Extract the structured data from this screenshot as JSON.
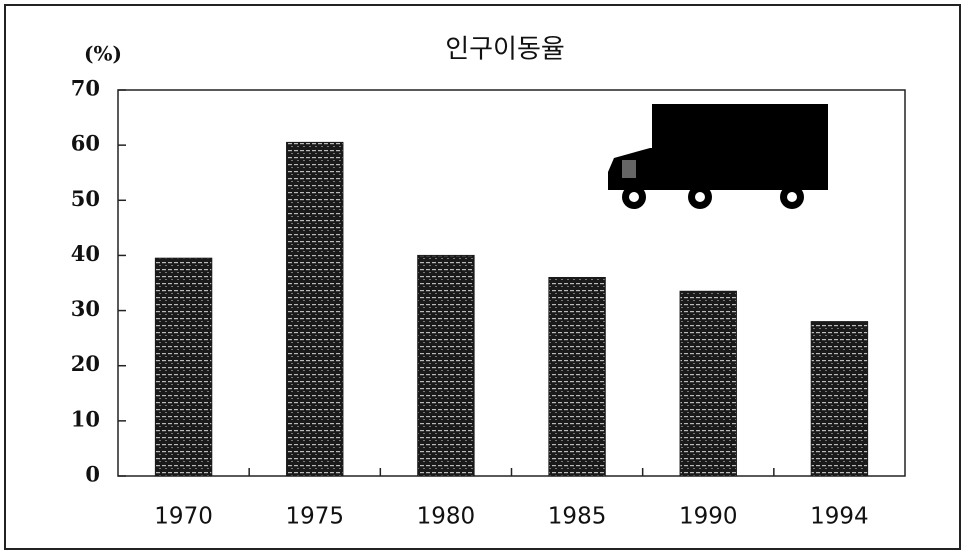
{
  "chart_data": {
    "type": "bar",
    "title": "인구이동율",
    "y_axis_label": "(%)",
    "categories": [
      "1970",
      "1975",
      "1980",
      "1985",
      "1990",
      "1994"
    ],
    "values": [
      39.5,
      60.5,
      40,
      36,
      33.5,
      28
    ],
    "color": "#1a1a1a",
    "ylim": [
      0,
      70
    ],
    "yticks": [
      0,
      10,
      20,
      30,
      40,
      50,
      60,
      70
    ],
    "grid": false
  }
}
